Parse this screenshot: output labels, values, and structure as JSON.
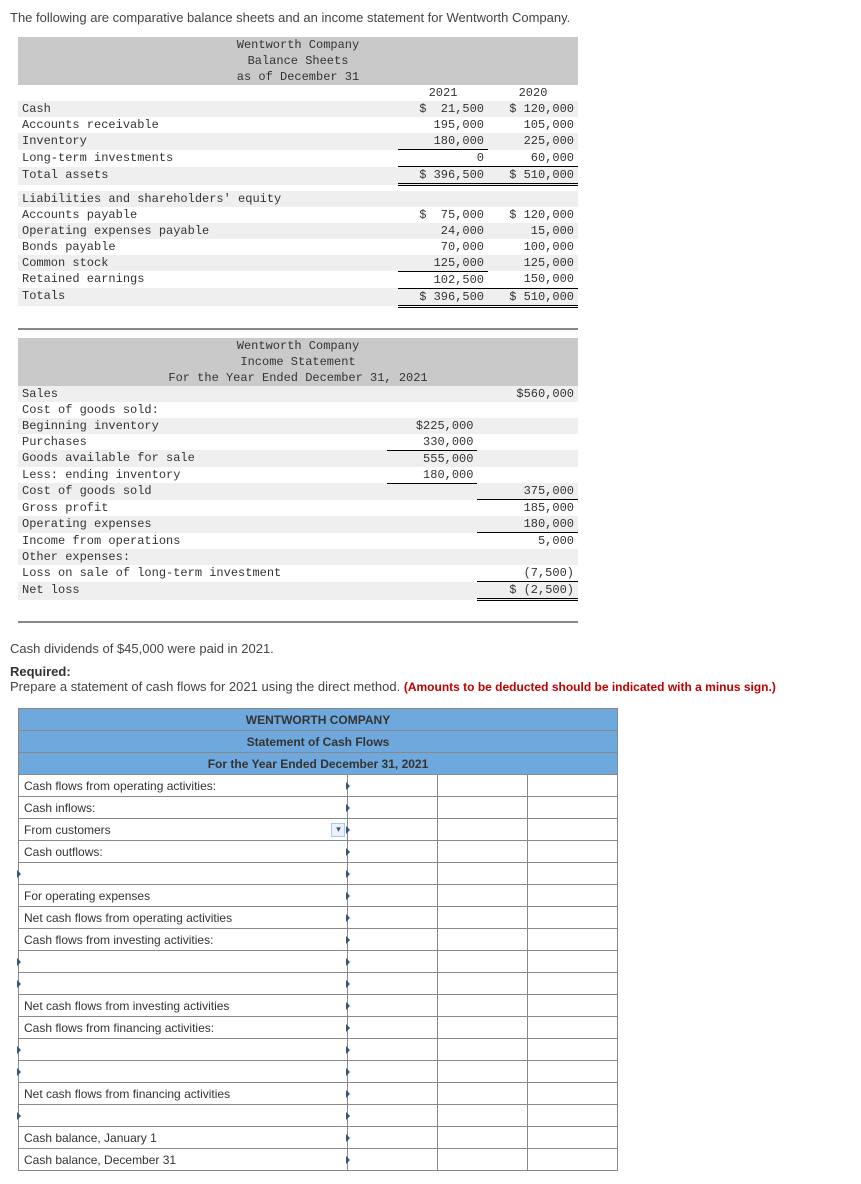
{
  "intro": "The following are comparative balance sheets and an income statement for Wentworth Company.",
  "balance_sheet": {
    "header1": "Wentworth Company",
    "header2": "Balance Sheets",
    "header3": "as of December 31",
    "year1": "2021",
    "year2": "2020",
    "rows": [
      {
        "label": "Cash",
        "y1": "$  21,500",
        "y2": "$ 120,000",
        "shade": true
      },
      {
        "label": "Accounts receivable",
        "y1": "195,000",
        "y2": "105,000"
      },
      {
        "label": "Inventory",
        "y1": "180,000",
        "y2": "225,000",
        "shade": true
      },
      {
        "label": "Long-term investments",
        "y1": "0",
        "y2": "60,000",
        "ul": true
      }
    ],
    "total_assets": {
      "label": "Total assets",
      "y1": "$ 396,500",
      "y2": "$ 510,000"
    },
    "section2": "Liabilities and shareholders' equity",
    "rows2": [
      {
        "label": "Accounts payable",
        "y1": "$  75,000",
        "y2": "$ 120,000"
      },
      {
        "label": "Operating expenses payable",
        "y1": "24,000",
        "y2": "15,000",
        "shade": true
      },
      {
        "label": "Bonds payable",
        "y1": "70,000",
        "y2": "100,000"
      },
      {
        "label": "Common stock",
        "y1": "125,000",
        "y2": "125,000",
        "shade": true
      },
      {
        "label": "Retained earnings",
        "y1": "102,500",
        "y2": "150,000",
        "ul": true
      }
    ],
    "totals": {
      "label": "Totals",
      "y1": "$ 396,500",
      "y2": "$ 510,000"
    }
  },
  "income_statement": {
    "header1": "Wentworth Company",
    "header2": "Income Statement",
    "header3": "For the Year Ended December 31, 2021",
    "lines": [
      {
        "label": "Sales",
        "c2": "",
        "c3": "$560,000",
        "shade": true
      },
      {
        "label": "Cost of goods sold:",
        "c2": "",
        "c3": ""
      },
      {
        "label": "Beginning inventory",
        "c2": "$225,000",
        "c3": "",
        "shade": true
      },
      {
        "label": "Purchases",
        "c2": "330,000",
        "c3": "",
        "ul2": true
      },
      {
        "label": "Goods available for sale",
        "c2": "555,000",
        "c3": "",
        "shade": true
      },
      {
        "label": "Less: ending inventory",
        "c2": "180,000",
        "c3": "",
        "ul2": true
      },
      {
        "label": "Cost of goods sold",
        "c2": "",
        "c3": "375,000",
        "shade": true,
        "ul3": true
      },
      {
        "label": "Gross profit",
        "c2": "",
        "c3": "185,000"
      },
      {
        "label": "Operating expenses",
        "c2": "",
        "c3": "180,000",
        "shade": true,
        "ul3": true
      },
      {
        "label": "Income from operations",
        "c2": "",
        "c3": "5,000"
      },
      {
        "label": "Other expenses:",
        "c2": "",
        "c3": "",
        "shade": true
      },
      {
        "label": "Loss on sale of long-term investment",
        "c2": "",
        "c3": "(7,500)",
        "ul3": true
      },
      {
        "label": "Net loss",
        "c2": "",
        "c3": "$ (2,500)",
        "shade": true,
        "dbl3": true
      }
    ]
  },
  "note": "Cash dividends of $45,000 were paid in 2021.",
  "required_label": "Required:",
  "required_text": "Prepare a statement of cash flows for 2021 using the direct method. ",
  "required_red": "(Amounts to be deducted should be indicated with a minus sign.)",
  "cashflow": {
    "title1": "WENTWORTH COMPANY",
    "title2": "Statement of Cash Flows",
    "title3": "For the Year Ended December 31, 2021",
    "rows": [
      {
        "c1": "Cash flows from operating activities:",
        "type": "label"
      },
      {
        "c1": "Cash inflows:",
        "type": "label"
      },
      {
        "c1": "From customers",
        "type": "dropdown"
      },
      {
        "c1": "Cash outflows:",
        "type": "label"
      },
      {
        "c1": "",
        "type": "tickinput"
      },
      {
        "c1": "For operating expenses",
        "type": "label"
      },
      {
        "c1": "Net cash flows from operating activities",
        "type": "label"
      },
      {
        "c1": "Cash flows from investing activities:",
        "type": "label"
      },
      {
        "c1": "",
        "type": "tickinput"
      },
      {
        "c1": "",
        "type": "tickinput"
      },
      {
        "c1": "Net cash flows from investing activities",
        "type": "label"
      },
      {
        "c1": "Cash flows from financing activities:",
        "type": "label"
      },
      {
        "c1": "",
        "type": "tickinput"
      },
      {
        "c1": "",
        "type": "tickinput"
      },
      {
        "c1": "Net cash flows from financing activities",
        "type": "label"
      },
      {
        "c1": "",
        "type": "tickinput"
      },
      {
        "c1": "Cash balance, January 1",
        "type": "label"
      },
      {
        "c1": "Cash balance, December 31",
        "type": "label"
      }
    ]
  }
}
